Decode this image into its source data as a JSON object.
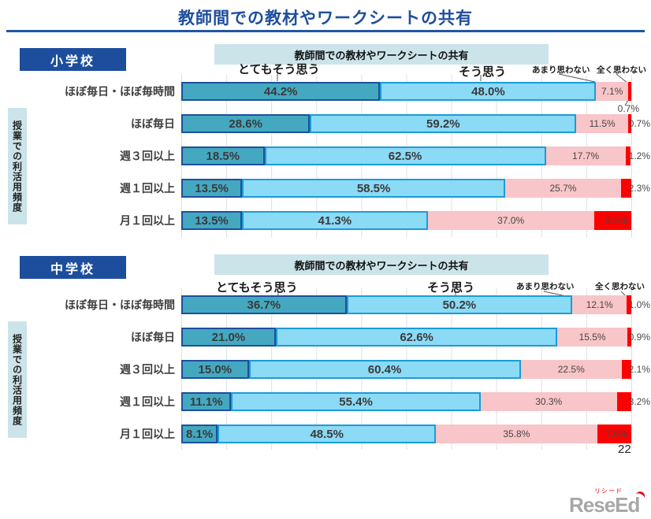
{
  "page": {
    "title": "教師間での教材やワークシートの共有",
    "page_number": "22",
    "logo_text": "ReseEd",
    "logo_ruby": "リシード"
  },
  "legend": {
    "strongly_agree": "とてもそう思う",
    "agree": "そう思う",
    "disagree": "あまり思わない",
    "strongly_disagree": "全く思わない"
  },
  "colors": {
    "strongly_agree": "#44A8C0",
    "agree": "#8BDAF6",
    "disagree": "#F8C5C8",
    "strongly_disagree": "#FF0000",
    "accent_blue": "#1D4E9E",
    "header_bg": "#CBE4EA",
    "title_blue": "#1E4E9C"
  },
  "charts": [
    {
      "school": "小学校",
      "chart_title": "教師間での教材やワークシートの共有",
      "axis_label": "授業での利活用頻度",
      "rows": [
        {
          "label": "ほぼ毎日・ほぼ毎時間",
          "seg_labels": [
            "44.2%",
            "48.0%",
            "7.1%",
            "0.7%"
          ]
        },
        {
          "label": "ほぼ毎日",
          "seg_labels": [
            "28.6%",
            "59.2%",
            "11.5%",
            "0.7%"
          ]
        },
        {
          "label": "週３回以上",
          "seg_labels": [
            "18.5%",
            "62.5%",
            "17.7%",
            "1.2%"
          ]
        },
        {
          "label": "週１回以上",
          "seg_labels": [
            "13.5%",
            "58.5%",
            "25.7%",
            "2.3%"
          ]
        },
        {
          "label": "月１回以上",
          "seg_labels": [
            "13.5%",
            "41.3%",
            "37.0%",
            "8.3%"
          ]
        }
      ]
    },
    {
      "school": "中学校",
      "chart_title": "教師間での教材やワークシートの共有",
      "axis_label": "授業での利活用頻度",
      "rows": [
        {
          "label": "ほぼ毎日・ほぼ毎時間",
          "seg_labels": [
            "36.7%",
            "50.2%",
            "12.1%",
            "1.0%"
          ]
        },
        {
          "label": "ほぼ毎日",
          "seg_labels": [
            "21.0%",
            "62.6%",
            "15.5%",
            "0.9%"
          ]
        },
        {
          "label": "週３回以上",
          "seg_labels": [
            "15.0%",
            "60.4%",
            "22.5%",
            "2.1%"
          ]
        },
        {
          "label": "週１回以上",
          "seg_labels": [
            "11.1%",
            "55.4%",
            "30.3%",
            "3.2%"
          ]
        },
        {
          "label": "月１回以上",
          "seg_labels": [
            "8.1%",
            "48.5%",
            "35.8%",
            "7.6%"
          ]
        }
      ]
    }
  ],
  "chart_data": [
    {
      "type": "bar",
      "stacked": true,
      "orientation": "horizontal",
      "title": "教師間での教材やワークシートの共有",
      "group": "小学校",
      "ylabel": "授業での利活用頻度",
      "xlim": [
        0,
        100
      ],
      "grid": true,
      "categories": [
        "ほぼ毎日・ほぼ毎時間",
        "ほぼ毎日",
        "週３回以上",
        "週１回以上",
        "月１回以上"
      ],
      "series": [
        {
          "name": "とてもそう思う",
          "values": [
            44.2,
            28.6,
            18.5,
            13.5,
            13.5
          ]
        },
        {
          "name": "そう思う",
          "values": [
            48.0,
            59.2,
            62.5,
            58.5,
            41.3
          ]
        },
        {
          "name": "あまり思わない",
          "values": [
            7.1,
            11.5,
            17.7,
            25.7,
            37.0
          ]
        },
        {
          "name": "全く思わない",
          "values": [
            0.7,
            0.7,
            1.2,
            2.3,
            8.3
          ]
        }
      ],
      "legend_position": "top"
    },
    {
      "type": "bar",
      "stacked": true,
      "orientation": "horizontal",
      "title": "教師間での教材やワークシートの共有",
      "group": "中学校",
      "ylabel": "授業での利活用頻度",
      "xlim": [
        0,
        100
      ],
      "grid": true,
      "categories": [
        "ほぼ毎日・ほぼ毎時間",
        "ほぼ毎日",
        "週３回以上",
        "週１回以上",
        "月１回以上"
      ],
      "series": [
        {
          "name": "とてもそう思う",
          "values": [
            36.7,
            21.0,
            15.0,
            11.1,
            8.1
          ]
        },
        {
          "name": "そう思う",
          "values": [
            50.2,
            62.6,
            60.4,
            55.4,
            48.5
          ]
        },
        {
          "name": "あまり思わない",
          "values": [
            12.1,
            15.5,
            22.5,
            30.3,
            35.8
          ]
        },
        {
          "name": "全く思わない",
          "values": [
            1.0,
            0.9,
            2.1,
            3.2,
            7.6
          ]
        }
      ],
      "legend_position": "top"
    }
  ]
}
